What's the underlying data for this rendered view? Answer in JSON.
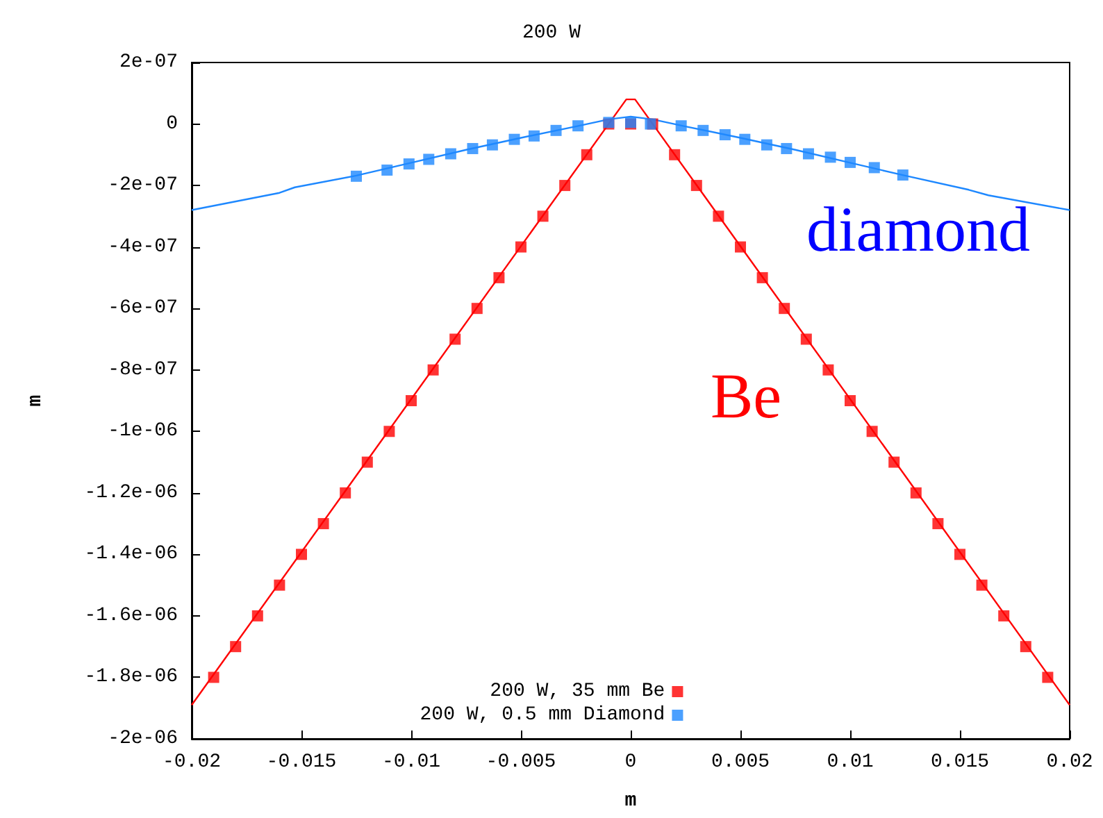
{
  "chart_data": {
    "type": "scatter",
    "title": "200 W",
    "xlabel": "m",
    "ylabel": "m",
    "xlim": [
      -0.02,
      0.02
    ],
    "xticks": [
      -0.02,
      -0.015,
      -0.01,
      -0.005,
      0,
      0.005,
      0.01,
      0.015,
      0.02
    ],
    "ylim": [
      -2e-06,
      2e-07
    ],
    "yticks": [
      {
        "value": 2e-07,
        "label": "2e-07"
      },
      {
        "value": 0,
        "label": "0"
      },
      {
        "value": -2e-07,
        "label": "-2e-07"
      },
      {
        "value": -4e-07,
        "label": "-4e-07"
      },
      {
        "value": -6e-07,
        "label": "-6e-07"
      },
      {
        "value": -8e-07,
        "label": "-8e-07"
      },
      {
        "value": -1e-06,
        "label": "-1e-06"
      },
      {
        "value": -1.2e-06,
        "label": "-1.2e-06"
      },
      {
        "value": -1.4e-06,
        "label": "-1.4e-06"
      },
      {
        "value": -1.6e-06,
        "label": "-1.6e-06"
      },
      {
        "value": -1.8e-06,
        "label": "-1.8e-06"
      },
      {
        "value": -2e-06,
        "label": "-2e-06"
      }
    ],
    "grid": false,
    "legend": "bottom",
    "series": [
      {
        "name": "200 W, 35 mm Be",
        "type": "scatter",
        "marker": "square",
        "color": "#ff0000",
        "x": [
          -0.019,
          -0.018,
          -0.017,
          -0.016,
          -0.015,
          -0.014,
          -0.013,
          -0.012,
          -0.011,
          -0.01,
          -0.009,
          -0.008,
          -0.007,
          -0.006,
          -0.005,
          -0.004,
          -0.003,
          -0.002,
          -0.001,
          0,
          0.001,
          0.002,
          0.003,
          0.004,
          0.005,
          0.006,
          0.007,
          0.008,
          0.009,
          0.01,
          0.011,
          0.012,
          0.013,
          0.014,
          0.015,
          0.016,
          0.017,
          0.018,
          0.019
        ],
        "values": [
          -1.8e-06,
          -1.7e-06,
          -1.6e-06,
          -1.5e-06,
          -1.4e-06,
          -1.3e-06,
          -1.2e-06,
          -1.1e-06,
          -1e-06,
          -9e-07,
          -8e-07,
          -7e-07,
          -6e-07,
          -5e-07,
          -4e-07,
          -3e-07,
          -2e-07,
          -1e-07,
          0,
          0,
          0,
          -1e-07,
          -2e-07,
          -3e-07,
          -4e-07,
          -5e-07,
          -6e-07,
          -7e-07,
          -8e-07,
          -9e-07,
          -1e-06,
          -1.1e-06,
          -1.2e-06,
          -1.3e-06,
          -1.4e-06,
          -1.5e-06,
          -1.6e-06,
          -1.7e-06,
          -1.8e-06
        ]
      },
      {
        "name": "200 W, 0.5 mm Diamond",
        "type": "scatter",
        "marker": "square",
        "color": "#1e88ff",
        "x": [
          -0.0125,
          -0.0111,
          -0.0101,
          -0.0092,
          -0.0082,
          -0.0072,
          -0.0063,
          -0.0053,
          -0.0044,
          -0.0034,
          -0.0024,
          -0.001,
          0,
          0.0009,
          0.0023,
          0.0033,
          0.0043,
          0.0052,
          0.0062,
          0.0071,
          0.0081,
          0.0091,
          0.01,
          0.0111,
          0.0124
        ],
        "values": [
          -1.7e-07,
          -1.5e-07,
          -1.3e-07,
          -1.15e-07,
          -9.7e-08,
          -8e-08,
          -6.8e-08,
          -5e-08,
          -3.9e-08,
          -2.1e-08,
          -6e-09,
          5e-09,
          5e-09,
          0,
          -6e-09,
          -2.1e-08,
          -3.5e-08,
          -5e-08,
          -6.8e-08,
          -8e-08,
          -9.7e-08,
          -1.08e-07,
          -1.25e-07,
          -1.42e-07,
          -1.66e-07
        ]
      },
      {
        "type": "line",
        "marker": "none",
        "line_style": "solid",
        "color": "#ff0000",
        "x": [
          -0.02,
          -0.0002,
          0.0002,
          0.02
        ],
        "values": [
          -1.89e-06,
          8e-08,
          8e-08,
          -1.89e-06
        ]
      },
      {
        "type": "line",
        "marker": "none",
        "line_style": "solid",
        "color": "#1e88ff",
        "x": [
          -0.02,
          -0.016,
          -0.0153,
          -0.0125,
          -0.01,
          -0.0075,
          -0.005,
          -0.0025,
          -0.001,
          0,
          0.001,
          0.0025,
          0.005,
          0.0075,
          0.01,
          0.0125,
          0.0154,
          0.0163,
          0.02
        ],
        "values": [
          -2.8e-07,
          -2.24e-07,
          -2.06e-07,
          -1.68e-07,
          -1.26e-07,
          -8.4e-08,
          -4.5e-08,
          -8e-09,
          1.5e-08,
          2.4e-08,
          1.5e-08,
          -8e-09,
          -4.5e-08,
          -8.4e-08,
          -1.26e-07,
          -1.68e-07,
          -2.14e-07,
          -2.32e-07,
          -2.8e-07
        ]
      }
    ],
    "annotations": [
      "Be",
      "diamond"
    ]
  }
}
